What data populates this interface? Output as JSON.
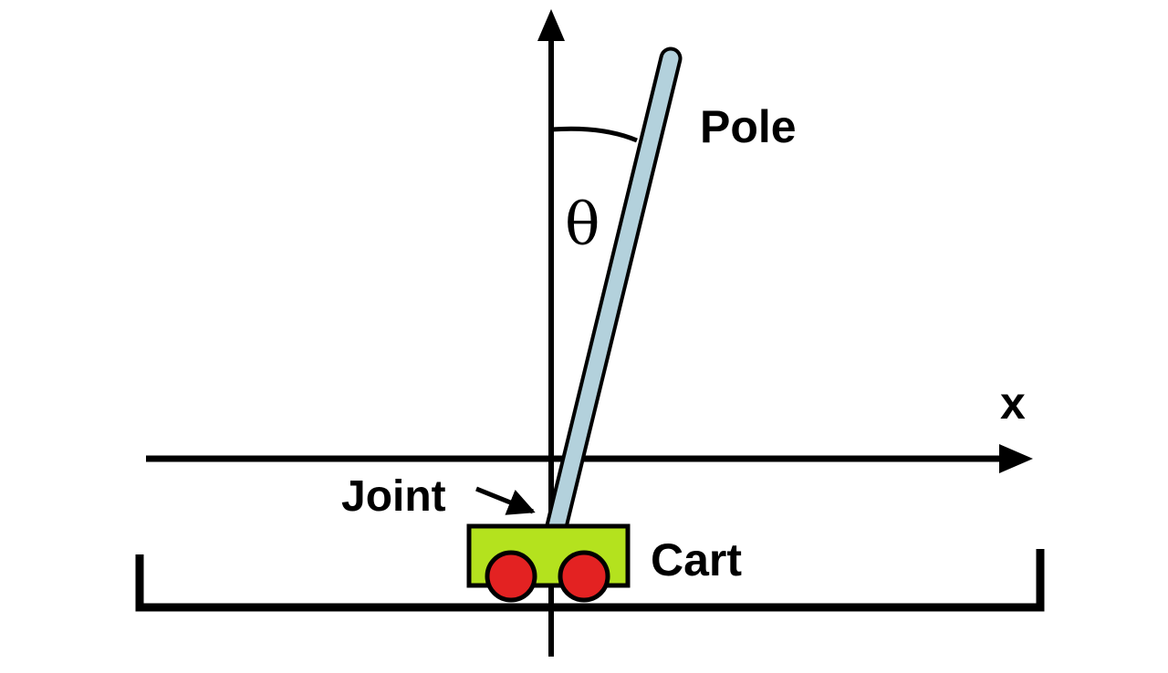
{
  "labels": {
    "pole": "Pole",
    "theta": "θ",
    "x_axis": "x",
    "joint": "Joint",
    "cart": "Cart"
  },
  "colors": {
    "pole_fill": "#b3d1dc",
    "cart_body": "#b4e21e",
    "wheels": "#e32222",
    "lines": "#000000",
    "background": "#ffffff"
  },
  "icons": {
    "y_axis_arrow": "arrow-up-icon",
    "x_axis_arrow": "arrow-right-icon",
    "joint_pointer": "arrow-pointer-icon"
  }
}
